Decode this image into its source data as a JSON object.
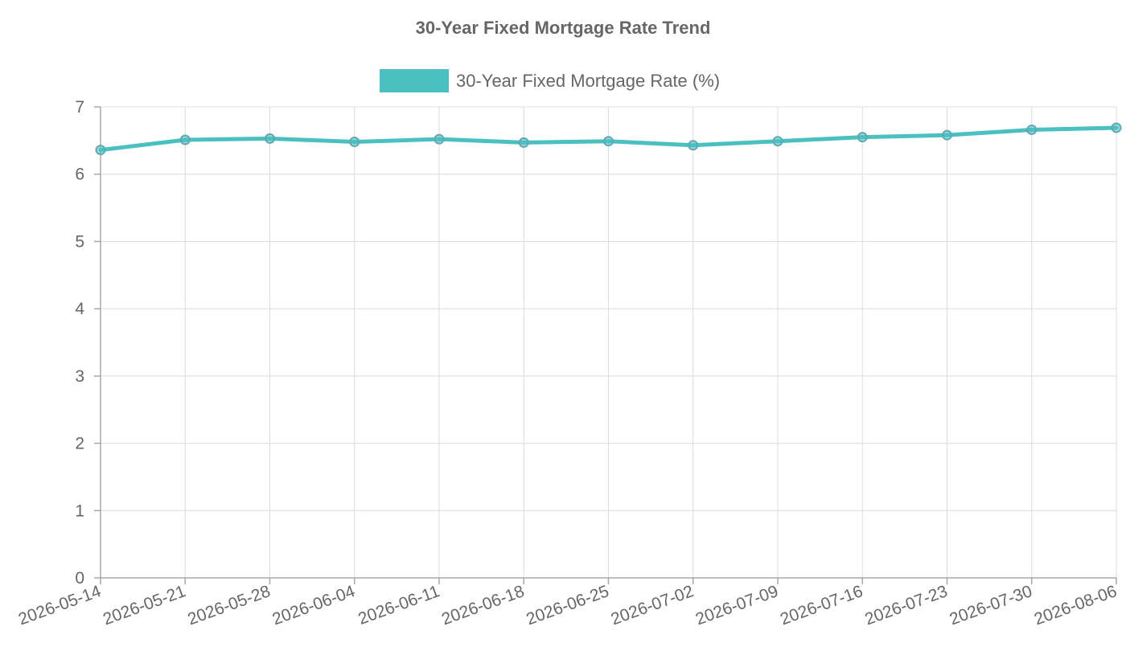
{
  "chart_data": {
    "type": "line",
    "title": "30-Year Fixed Mortgage Rate Trend",
    "xlabel": "",
    "ylabel": "",
    "categories": [
      "2026-05-14",
      "2026-05-21",
      "2026-05-28",
      "2026-06-04",
      "2026-06-11",
      "2026-06-18",
      "2026-06-25",
      "2026-07-02",
      "2026-07-09",
      "2026-07-16",
      "2026-07-23",
      "2026-07-30",
      "2026-08-06"
    ],
    "series": [
      {
        "name": "30-Year Fixed Mortgage Rate (%)",
        "values": [
          6.36,
          6.51,
          6.53,
          6.48,
          6.52,
          6.47,
          6.49,
          6.43,
          6.49,
          6.55,
          6.58,
          6.66,
          6.69
        ],
        "color": "#4bc0c0",
        "point_border_color": "#5fa8b4"
      }
    ],
    "ylim": [
      0,
      7
    ],
    "yticks": [
      "0",
      "1",
      "2",
      "3",
      "4",
      "5",
      "6",
      "7"
    ],
    "grid": true,
    "legend_position": "top"
  }
}
